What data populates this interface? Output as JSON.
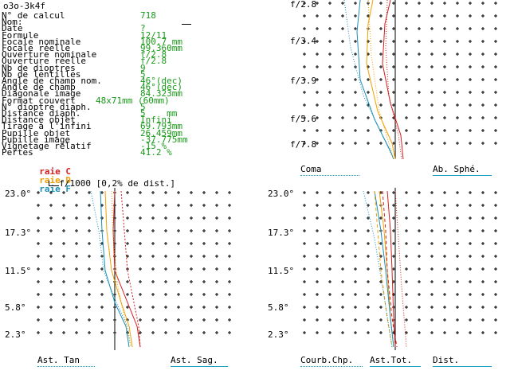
{
  "header": {
    "title": "o3o-3k4f"
  },
  "params": [
    {
      "label": "N° de calcul",
      "value": "718"
    },
    {
      "label": "Nom:",
      "value": ""
    },
    {
      "label": "Date",
      "value": "?"
    },
    {
      "label": "Formule",
      "value": "12/11"
    },
    {
      "label": "Focale nominale",
      "value": "100.7 mm"
    },
    {
      "label": "Focale réelle",
      "value": "99.360mm"
    },
    {
      "label": "Ouverture nominale",
      "value": "f/2.8"
    },
    {
      "label": "Ouverture réelle",
      "value": "f/2.8"
    },
    {
      "label": "Nb de dioptres",
      "value": "9"
    },
    {
      "label": "Nb de lentilles",
      "value": "5"
    },
    {
      "label": "Angle de champ nom.",
      "value": "46°(dec)"
    },
    {
      "label": "Angle de champ",
      "value": "46°(dec)"
    },
    {
      "label": "Diagonale image",
      "value": "84.323mm"
    },
    {
      "label": "Format couvert",
      "value": "48x71mm (60mm)"
    },
    {
      "label": "N° dioptre diaph.",
      "value": "5"
    },
    {
      "label": "Distance diaph.",
      "value": "5    mm"
    },
    {
      "label": "Distance objet",
      "value": "Infini"
    },
    {
      "label": "Tirage à l'infini",
      "value": "69.793mm"
    },
    {
      "label": "Pupille objet",
      "value": "26.459mm"
    },
    {
      "label": "Pupille image",
      "value": "-37.775mm"
    },
    {
      "label": "Vignetage relatif",
      "value": "-15 %"
    },
    {
      "label": "Pertes",
      "value": "41.2 %"
    }
  ],
  "legend": {
    "prefix_c": "raie",
    "c": "C",
    "prefix_d": "raie",
    "d": "D",
    "prefix_f": "raie",
    "f": "F",
    "scale_note": "f/1000 [0,2% de dist.]"
  },
  "colors": {
    "C": "#d42020",
    "D": "#f0a000",
    "F": "#1a8fb8",
    "green": "#1a9a1a",
    "axis": "#000000"
  },
  "plots": {
    "aperture": {
      "ticks": [
        "f/2.8",
        "f/3.4",
        "f/3.9",
        "f/5.6",
        "f/7.8"
      ],
      "tabs": [
        "Coma",
        "Ab. Sphé."
      ]
    },
    "field_left": {
      "ticks": [
        "23.0°",
        "17.3°",
        "11.5°",
        "5.8°",
        "2.3°"
      ],
      "tabs": [
        "Ast. Tan",
        "Ast. Sag."
      ]
    },
    "field_right": {
      "ticks": [
        "23.0°",
        "17.3°",
        "11.5°",
        "5.8°",
        "2.3°"
      ],
      "tabs": [
        "Courb.Chp.",
        "Ast.Tot.",
        "Dist."
      ]
    }
  }
}
